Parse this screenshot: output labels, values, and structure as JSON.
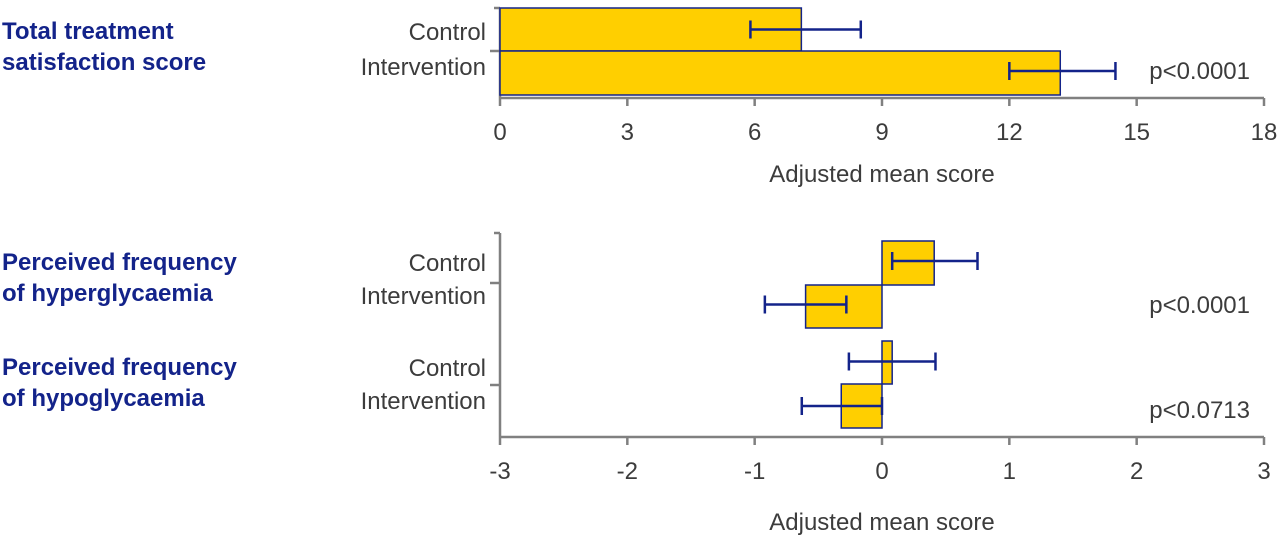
{
  "accent_colors": {
    "bar_fill": "#ffcf00",
    "bar_stroke": "#13238a",
    "measure_label": "#13238a",
    "text": "#3c3c3c",
    "axis": "#808080"
  },
  "chart_data": [
    {
      "type": "bar",
      "orientation": "horizontal",
      "measure": "Total treatment\nsatisfaction score",
      "categories": [
        "Control",
        "Intervention"
      ],
      "values": [
        7.1,
        13.2
      ],
      "error_low": [
        5.9,
        12.0
      ],
      "error_high": [
        8.5,
        14.5
      ],
      "p_value": "p<0.0001",
      "xlabel": "Adjusted mean score",
      "xlim": [
        0,
        18
      ],
      "xticks": [
        "0",
        "3",
        "6",
        "9",
        "12",
        "15",
        "18"
      ]
    },
    {
      "type": "bar",
      "orientation": "horizontal",
      "groups": [
        {
          "measure": "Perceived frequency\nof hyperglycaemia",
          "categories": [
            "Control",
            "Intervention"
          ],
          "values": [
            0.41,
            -0.6
          ],
          "error_low": [
            0.08,
            -0.92
          ],
          "error_high": [
            0.75,
            -0.28
          ],
          "p_value": "p<0.0001"
        },
        {
          "measure": "Perceived frequency\nof hypoglycaemia",
          "categories": [
            "Control",
            "Intervention"
          ],
          "values": [
            0.08,
            -0.32
          ],
          "error_low": [
            -0.26,
            -0.63
          ],
          "error_high": [
            0.42,
            0.0
          ],
          "p_value": "p<0.0713"
        }
      ],
      "xlabel": "Adjusted mean score",
      "xlim": [
        -3,
        3
      ],
      "xticks": [
        "-3",
        "-2",
        "-1",
        "0",
        "1",
        "2",
        "3"
      ]
    }
  ]
}
